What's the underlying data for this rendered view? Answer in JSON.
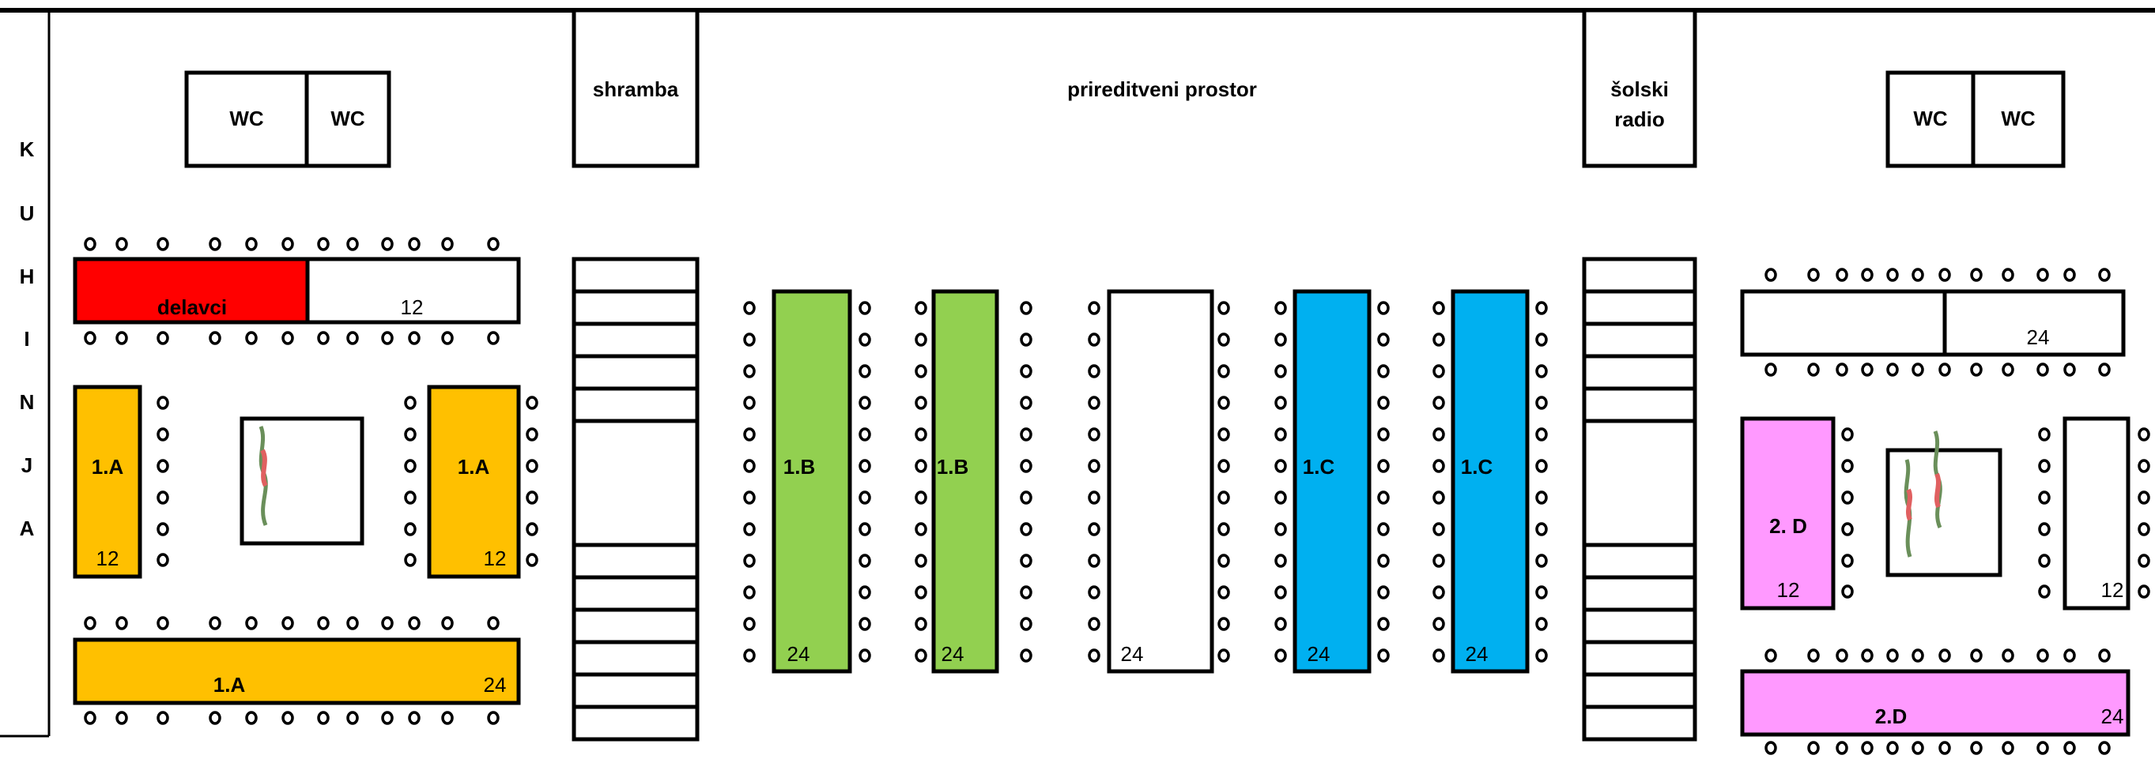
{
  "labels": {
    "wc": "WC",
    "storage": "shramba",
    "event_space": "prireditveni prostor",
    "school_radio_line1": "šolski",
    "school_radio_line2": "radio",
    "kitchen_letters": [
      "K",
      "U",
      "H",
      "I",
      "N",
      "J",
      "A"
    ]
  },
  "tables": {
    "workers": {
      "label": "delavci",
      "color": "#ff0000"
    },
    "top_left_white": {
      "seats": "12"
    },
    "class_1a_left": {
      "label": "1.A",
      "seats": "12",
      "color": "#ffc000"
    },
    "class_1a_right": {
      "label": "1.A",
      "seats": "12",
      "color": "#ffc000"
    },
    "class_1a_bottom": {
      "label": "1.A",
      "seats": "24",
      "color": "#ffc000"
    },
    "class_1b_first": {
      "label": "1.B",
      "seats": "24",
      "color": "#92d050"
    },
    "class_1b_second": {
      "label": "1.B",
      "seats": "24",
      "color": "#92d050"
    },
    "middle_white": {
      "seats": "24"
    },
    "class_1c_first": {
      "label": "1.C",
      "seats": "24",
      "color": "#00b0f0"
    },
    "class_1c_second": {
      "label": "1.C",
      "seats": "24",
      "color": "#00b0f0"
    },
    "right_top_white": {
      "seats": "24"
    },
    "class_2d_small": {
      "label": "2. D",
      "seats": "12",
      "color": "#ff99ff"
    },
    "right_side_white": {
      "seats": "12"
    },
    "class_2d_bottom": {
      "label": "2.D",
      "seats": "24",
      "color": "#ff99ff"
    }
  }
}
